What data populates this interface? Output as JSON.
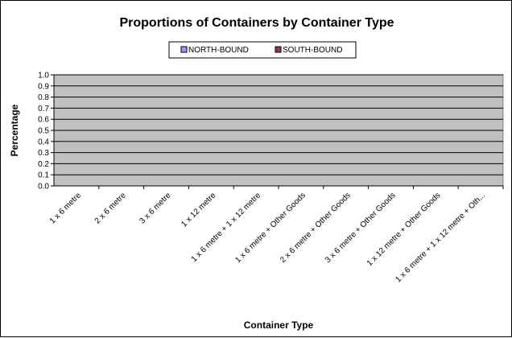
{
  "chart_data": {
    "type": "bar",
    "title": "Proportions of Containers by Container Type",
    "xlabel": "Container Type",
    "ylabel": "Percentage",
    "ylim": [
      0,
      1
    ],
    "yticks": [
      "0.0",
      "0.1",
      "0.2",
      "0.3",
      "0.4",
      "0.5",
      "0.6",
      "0.7",
      "0.8",
      "0.9",
      "1.0"
    ],
    "grid": true,
    "legend_position": "top",
    "categories": [
      "1 x 6 metre",
      "2 x 6 metre",
      "3 x 6 metre",
      "1 x 12 metre",
      "1 x 6 metre + 1 x 12 metre",
      "1 x 6 metre + Other Goods",
      "2 x 6 metre + Other Goods",
      "3 x 6 metre + Other Goods",
      "1 x 12 metre + Other Goods",
      "1 x 6 metre + 1 x 12 metre + Oth..."
    ],
    "series": [
      {
        "name": "NORTH-BOUND",
        "color": "#9999ff",
        "values": [
          0,
          0,
          0,
          0,
          0,
          0,
          0,
          0,
          0,
          0
        ]
      },
      {
        "name": "SOUTH-BOUND",
        "color": "#993366",
        "values": [
          0,
          0,
          0,
          0,
          0,
          0,
          0,
          0,
          0,
          0
        ]
      }
    ],
    "plot_background": "#c0c0c0"
  }
}
